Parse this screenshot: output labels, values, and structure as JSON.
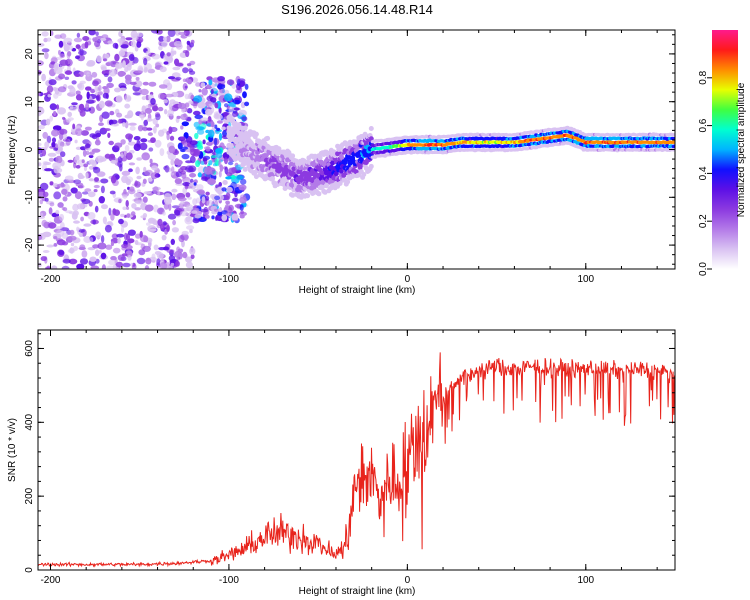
{
  "title": "S196.2026.056.14.48.R14",
  "colors": {
    "snr_line": "#e8241c",
    "axis": "#000000",
    "colormap": [
      "#ffffff",
      "#d9c2f2",
      "#b37ae8",
      "#8c3ae0",
      "#5c10e6",
      "#1010ff",
      "#00b4ff",
      "#00ffd0",
      "#40ff40",
      "#e8ff00",
      "#ff8c00",
      "#ff1a1a",
      "#ff1a8c"
    ]
  },
  "chart_data": [
    {
      "type": "heatmap",
      "name": "spectrogram",
      "xlabel": "Height of straight line (km)",
      "ylabel": "Frequency (Hz)",
      "xlim": [
        -207,
        150
      ],
      "ylim": [
        -25,
        25
      ],
      "xticks": [
        -200,
        -100,
        0,
        100
      ],
      "xtick_labels": [
        "-200",
        "-100",
        "0",
        "100"
      ],
      "yticks": [
        -20,
        -10,
        0,
        10,
        20
      ],
      "ytick_labels": [
        "-20",
        "-10",
        "0",
        "10",
        "20"
      ],
      "colorbar": {
        "label": "Normalized spectral amplitude",
        "range": [
          0,
          1
        ],
        "ticks": [
          0.0,
          0.2,
          0.4,
          0.6,
          0.8
        ],
        "tick_labels": [
          "0.0",
          "0.2",
          "0.4",
          "0.6",
          "0.8"
        ]
      },
      "ridge": {
        "heights_km": [
          -100,
          -90,
          -80,
          -70,
          -60,
          -50,
          -40,
          -30,
          -20,
          -10,
          0,
          10,
          20,
          30,
          40,
          50,
          60,
          70,
          80,
          90,
          100,
          110,
          120,
          130,
          140,
          150
        ],
        "frequency_hz": [
          3,
          0,
          -2,
          -4,
          -6,
          -5,
          -4,
          -2,
          0,
          0.5,
          1,
          1,
          1,
          1.5,
          1.5,
          1.5,
          1.5,
          2,
          2.5,
          3,
          1.5,
          1.5,
          1.5,
          1.5,
          1.5,
          1.5
        ],
        "amplitude": [
          0.05,
          0.15,
          0.25,
          0.3,
          0.3,
          0.35,
          0.45,
          0.5,
          0.55,
          0.6,
          0.75,
          0.9,
          0.85,
          0.8,
          0.75,
          0.75,
          0.8,
          0.85,
          0.85,
          0.85,
          0.85,
          0.85,
          0.85,
          0.85,
          0.85,
          0.8
        ]
      }
    },
    {
      "type": "line",
      "name": "snr",
      "xlabel": "Height of straight line (km)",
      "ylabel": "SNR (10 * v/v)",
      "xlim": [
        -207,
        150
      ],
      "ylim": [
        0,
        650
      ],
      "xticks": [
        -200,
        -100,
        0,
        100
      ],
      "xtick_labels": [
        "-200",
        "-100",
        "0",
        "100"
      ],
      "yticks": [
        0,
        200,
        400,
        600
      ],
      "ytick_labels": [
        "0",
        "200",
        "400",
        "600"
      ],
      "series": [
        {
          "name": "SNR",
          "x": [
            -207,
            -190,
            -170,
            -150,
            -130,
            -110,
            -100,
            -90,
            -80,
            -70,
            -60,
            -50,
            -40,
            -35,
            -30,
            -25,
            -20,
            -15,
            -10,
            -5,
            0,
            5,
            10,
            15,
            20,
            25,
            30,
            40,
            50,
            60,
            70,
            80,
            90,
            100,
            110,
            120,
            130,
            140,
            150
          ],
          "y": [
            15,
            15,
            15,
            15,
            18,
            25,
            40,
            60,
            90,
            100,
            90,
            70,
            40,
            60,
            200,
            280,
            250,
            200,
            250,
            240,
            300,
            350,
            400,
            450,
            470,
            500,
            520,
            540,
            550,
            545,
            550,
            550,
            545,
            550,
            545,
            540,
            545,
            540,
            530
          ]
        }
      ]
    }
  ]
}
